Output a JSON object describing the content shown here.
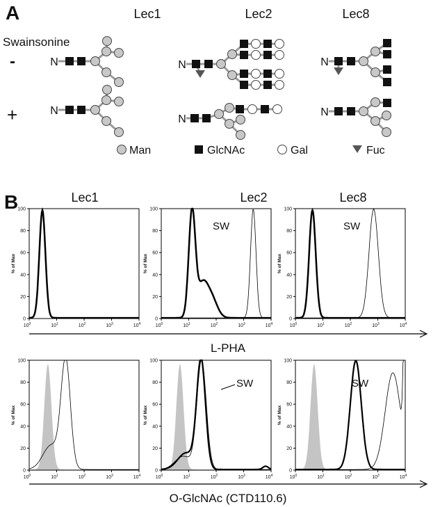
{
  "panel_a": {
    "label": "A",
    "columns": [
      "Lec1",
      "Lec2",
      "Lec8"
    ],
    "treatment": "Swainsonine",
    "rows": [
      "-",
      "+"
    ],
    "glycan_root": "N",
    "legend": [
      "Man",
      "GlcNAc",
      "Gal",
      "Fuc"
    ]
  },
  "panel_b": {
    "label": "B",
    "columns": [
      "Lec1",
      "Lec2",
      "Lec8"
    ],
    "y_axis_label": "% of Max",
    "yticks": [
      0,
      20,
      40,
      60,
      80,
      100
    ],
    "xticks": [
      {
        "base": "10",
        "exp": "0"
      },
      {
        "base": "10",
        "exp": "1"
      },
      {
        "base": "10",
        "exp": "2"
      },
      {
        "base": "10",
        "exp": "3"
      },
      {
        "base": "10",
        "exp": "4"
      }
    ],
    "rows": [
      {
        "x_axis_label": "L-PHA",
        "annotations": [
          "SW",
          "SW"
        ]
      },
      {
        "x_axis_label": "O-GlcNAc (CTD110.6)",
        "annotations": [
          "SW",
          "SW"
        ]
      }
    ]
  }
}
